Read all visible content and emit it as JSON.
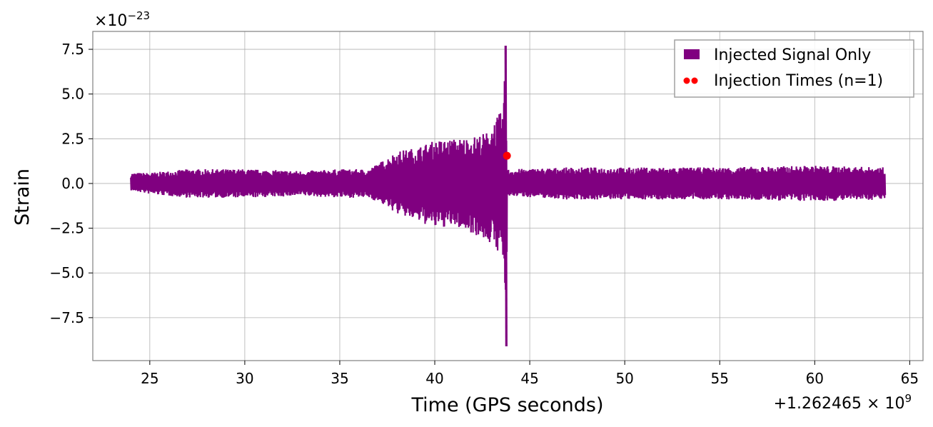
{
  "chart_data": {
    "type": "line",
    "xlabel": "Time (GPS seconds)",
    "ylabel": "Strain",
    "x_offset_label": "+1.262465 × 10",
    "x_offset_exponent": "9",
    "y_scale_label": "×10",
    "y_scale_exponent": "−23",
    "xlim": [
      22,
      65.7
    ],
    "ylim": [
      -9.9,
      8.5
    ],
    "xticks": [
      25,
      30,
      35,
      40,
      45,
      50,
      55,
      60,
      65
    ],
    "xtick_labels": [
      "25",
      "30",
      "35",
      "40",
      "45",
      "50",
      "55",
      "60",
      "65"
    ],
    "yticks": [
      7.5,
      5.0,
      2.5,
      0.0,
      -2.5,
      -5.0,
      -7.5
    ],
    "ytick_labels": [
      "7.5",
      "5.0",
      "2.5",
      "0.0",
      "−2.5",
      "−5.0",
      "−7.5"
    ],
    "grid": true,
    "legend_position": "top-right",
    "series": [
      {
        "name": "Injected Signal Only",
        "color": "#800080",
        "kind": "line",
        "envelope": {
          "x": [
            24.0,
            25.0,
            27.0,
            30.0,
            33.0,
            35.0,
            36.5,
            37.3,
            38.0,
            39.0,
            40.0,
            41.0,
            42.0,
            42.8,
            43.3,
            43.6,
            43.75,
            43.8,
            44.0,
            47.0,
            50.0,
            55.0,
            60.0,
            63.7
          ],
          "upper": [
            0.6,
            0.6,
            0.8,
            0.8,
            0.7,
            0.8,
            0.8,
            1.3,
            1.8,
            2.0,
            2.4,
            2.5,
            2.6,
            2.9,
            3.8,
            4.1,
            7.7,
            0.8,
            0.8,
            0.9,
            0.9,
            0.9,
            1.0,
            0.9
          ],
          "lower": [
            -0.4,
            -0.6,
            -0.8,
            -0.8,
            -0.7,
            -0.8,
            -0.8,
            -1.2,
            -1.7,
            -2.1,
            -2.5,
            -2.4,
            -2.8,
            -3.3,
            -3.8,
            -4.3,
            -9.1,
            -0.8,
            -0.7,
            -0.9,
            -0.9,
            -0.9,
            -1.0,
            -0.9
          ]
        }
      },
      {
        "name": "Injection Times (n=1)",
        "color": "#ff0000",
        "kind": "scatter",
        "points": [
          {
            "x": 43.8,
            "y": 1.55
          }
        ]
      }
    ]
  }
}
